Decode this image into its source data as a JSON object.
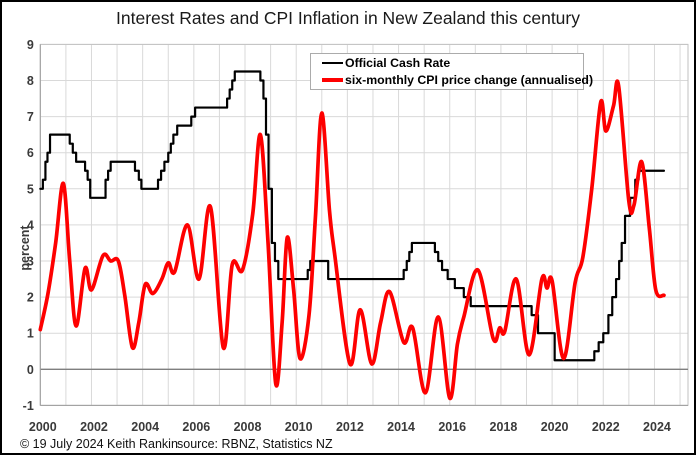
{
  "window": {
    "title": "Interest Rates and CPI Inflation in New Zealand this century"
  },
  "colors": {
    "ocr_line": "#000000",
    "cpi_line": "#fe0000",
    "gridline": "#d9d9d9",
    "zero_line": "#7f7f7f",
    "plot_border": "#9e9e9e",
    "tick_label": "#3a3a3a",
    "background": "#ffffff",
    "frame_border": "#000000"
  },
  "chart_data": {
    "type": "line",
    "title": "Interest Rates and CPI Inflation in New Zealand this century",
    "xlabel": "",
    "ylabel": "percent",
    "xlim": [
      2000,
      2025.3
    ],
    "ylim": [
      -1,
      9
    ],
    "x_ticks": [
      2000,
      2002,
      2004,
      2006,
      2008,
      2010,
      2012,
      2014,
      2016,
      2018,
      2020,
      2022,
      2024
    ],
    "y_ticks": [
      -1,
      0,
      1,
      2,
      3,
      4,
      5,
      6,
      7,
      8,
      9
    ],
    "grid": "yearly vertical and unit horizontal light-gray gridlines; darker line at zero",
    "legend_position": "top-center",
    "legend": [
      {
        "label": "Official Cash Rate",
        "color": "#000000"
      },
      {
        "label": "six-monthly CPI price change (annualised)",
        "color": "#fe0000"
      }
    ],
    "series": [
      {
        "name": "Official Cash Rate",
        "color": "#000000",
        "style": "step",
        "line_width": 2.2,
        "end_x": 2024.37,
        "points": [
          [
            2000.0,
            5.0
          ],
          [
            2000.1,
            5.25
          ],
          [
            2000.2,
            5.75
          ],
          [
            2000.28,
            6.0
          ],
          [
            2000.38,
            6.5
          ],
          [
            2001.15,
            6.25
          ],
          [
            2001.27,
            6.0
          ],
          [
            2001.4,
            5.75
          ],
          [
            2001.75,
            5.5
          ],
          [
            2001.85,
            5.25
          ],
          [
            2001.95,
            4.75
          ],
          [
            2002.55,
            5.25
          ],
          [
            2002.65,
            5.5
          ],
          [
            2002.75,
            5.75
          ],
          [
            2003.7,
            5.5
          ],
          [
            2003.85,
            5.25
          ],
          [
            2003.95,
            5.0
          ],
          [
            2004.6,
            5.25
          ],
          [
            2004.72,
            5.5
          ],
          [
            2004.85,
            5.75
          ],
          [
            2005.0,
            6.0
          ],
          [
            2005.1,
            6.25
          ],
          [
            2005.2,
            6.5
          ],
          [
            2005.35,
            6.75
          ],
          [
            2005.9,
            7.0
          ],
          [
            2006.05,
            7.25
          ],
          [
            2007.3,
            7.5
          ],
          [
            2007.4,
            7.75
          ],
          [
            2007.5,
            8.0
          ],
          [
            2007.6,
            8.25
          ],
          [
            2008.6,
            8.0
          ],
          [
            2008.72,
            7.5
          ],
          [
            2008.82,
            6.5
          ],
          [
            2008.92,
            5.0
          ],
          [
            2009.05,
            3.5
          ],
          [
            2009.17,
            3.0
          ],
          [
            2009.3,
            2.5
          ],
          [
            2010.45,
            2.75
          ],
          [
            2010.55,
            3.0
          ],
          [
            2011.25,
            2.5
          ],
          [
            2014.2,
            2.75
          ],
          [
            2014.32,
            3.0
          ],
          [
            2014.42,
            3.25
          ],
          [
            2014.52,
            3.5
          ],
          [
            2015.42,
            3.25
          ],
          [
            2015.55,
            3.0
          ],
          [
            2015.7,
            2.75
          ],
          [
            2015.92,
            2.5
          ],
          [
            2016.2,
            2.25
          ],
          [
            2016.55,
            2.0
          ],
          [
            2016.82,
            1.75
          ],
          [
            2019.2,
            1.5
          ],
          [
            2019.45,
            1.0
          ],
          [
            2020.1,
            0.25
          ],
          [
            2021.65,
            0.5
          ],
          [
            2021.82,
            0.75
          ],
          [
            2022.0,
            1.0
          ],
          [
            2022.2,
            1.5
          ],
          [
            2022.35,
            2.0
          ],
          [
            2022.5,
            2.5
          ],
          [
            2022.62,
            3.0
          ],
          [
            2022.72,
            3.5
          ],
          [
            2022.85,
            4.25
          ],
          [
            2023.05,
            4.75
          ],
          [
            2023.25,
            5.25
          ],
          [
            2023.38,
            5.5
          ]
        ]
      },
      {
        "name": "six-monthly CPI price change (annualised)",
        "color": "#fe0000",
        "style": "smooth",
        "line_width": 3.7,
        "points": [
          [
            2000.0,
            1.1
          ],
          [
            2000.3,
            2.1
          ],
          [
            2000.6,
            3.5
          ],
          [
            2000.9,
            5.15
          ],
          [
            2001.15,
            3.0
          ],
          [
            2001.4,
            1.2
          ],
          [
            2001.75,
            2.8
          ],
          [
            2002.0,
            2.2
          ],
          [
            2002.45,
            3.15
          ],
          [
            2002.75,
            3.0
          ],
          [
            2003.05,
            3.0
          ],
          [
            2003.3,
            2.05
          ],
          [
            2003.6,
            0.6
          ],
          [
            2003.85,
            1.3
          ],
          [
            2004.1,
            2.35
          ],
          [
            2004.4,
            2.1
          ],
          [
            2004.75,
            2.5
          ],
          [
            2005.0,
            2.95
          ],
          [
            2005.25,
            2.7
          ],
          [
            2005.75,
            4.0
          ],
          [
            2006.2,
            2.5
          ],
          [
            2006.65,
            4.5
          ],
          [
            2007.15,
            0.6
          ],
          [
            2007.5,
            2.9
          ],
          [
            2007.9,
            2.75
          ],
          [
            2008.3,
            4.3
          ],
          [
            2008.6,
            6.5
          ],
          [
            2008.9,
            3.5
          ],
          [
            2009.2,
            -0.4
          ],
          [
            2009.45,
            1.3
          ],
          [
            2009.65,
            3.65
          ],
          [
            2009.9,
            2.2
          ],
          [
            2010.15,
            0.3
          ],
          [
            2010.5,
            1.5
          ],
          [
            2010.75,
            4.2
          ],
          [
            2011.0,
            7.1
          ],
          [
            2011.3,
            4.4
          ],
          [
            2011.5,
            3.2
          ],
          [
            2012.1,
            0.15
          ],
          [
            2012.5,
            1.65
          ],
          [
            2012.95,
            0.15
          ],
          [
            2013.3,
            1.3
          ],
          [
            2013.65,
            2.15
          ],
          [
            2014.2,
            0.75
          ],
          [
            2014.55,
            1.15
          ],
          [
            2015.05,
            -0.65
          ],
          [
            2015.55,
            1.45
          ],
          [
            2016.0,
            -0.8
          ],
          [
            2016.3,
            0.7
          ],
          [
            2016.55,
            1.45
          ],
          [
            2017.1,
            2.75
          ],
          [
            2017.7,
            0.85
          ],
          [
            2017.95,
            1.15
          ],
          [
            2018.15,
            1.05
          ],
          [
            2018.6,
            2.5
          ],
          [
            2019.1,
            0.4
          ],
          [
            2019.6,
            2.5
          ],
          [
            2019.8,
            2.25
          ],
          [
            2020.0,
            2.45
          ],
          [
            2020.45,
            0.3
          ],
          [
            2020.9,
            2.4
          ],
          [
            2021.2,
            3.1
          ],
          [
            2021.55,
            5.0
          ],
          [
            2021.9,
            7.4
          ],
          [
            2022.1,
            6.6
          ],
          [
            2022.4,
            7.3
          ],
          [
            2022.6,
            7.85
          ],
          [
            2023.0,
            4.65
          ],
          [
            2023.2,
            4.55
          ],
          [
            2023.5,
            5.75
          ],
          [
            2023.8,
            3.9
          ],
          [
            2024.05,
            2.2
          ],
          [
            2024.37,
            2.05
          ]
        ]
      }
    ],
    "footer_left": "© 19 July 2024 Keith Rankin",
    "footer_source": "source: RBNZ, Statistics NZ"
  }
}
